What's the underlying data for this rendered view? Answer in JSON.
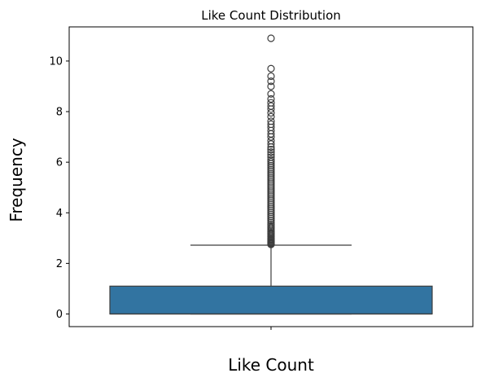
{
  "chart_data": {
    "type": "box",
    "title": "Like Count Distribution",
    "xlabel": "Like Count",
    "ylabel": "Frequency",
    "ylim": [
      -0.5,
      11.35
    ],
    "yticks": [
      0,
      2,
      4,
      6,
      8,
      10
    ],
    "grid": false,
    "legend": "none",
    "box_color": "#3274a1",
    "line_color": "#3d3d3d",
    "box": {
      "min": 0.0,
      "q1": 0.0,
      "median": 0.0,
      "q3": 1.1,
      "whisker_high": 2.72
    },
    "outliers": [
      2.75,
      2.78,
      2.8,
      2.83,
      2.86,
      2.9,
      2.93,
      2.96,
      3.0,
      3.05,
      3.1,
      3.15,
      3.2,
      3.25,
      3.3,
      3.36,
      3.42,
      3.48,
      3.55,
      3.62,
      3.7,
      3.78,
      3.86,
      3.94,
      4.02,
      4.1,
      4.18,
      4.26,
      4.34,
      4.42,
      4.5,
      4.58,
      4.66,
      4.74,
      4.82,
      4.9,
      4.98,
      5.06,
      5.14,
      5.22,
      5.3,
      5.38,
      5.46,
      5.54,
      5.62,
      5.7,
      5.78,
      5.86,
      5.94,
      6.02,
      6.1,
      6.2,
      6.3,
      6.4,
      6.5,
      6.6,
      6.72,
      6.85,
      7.0,
      7.12,
      7.25,
      7.38,
      7.5,
      7.62,
      7.8,
      7.95,
      8.1,
      8.22,
      8.35,
      8.5,
      8.7,
      9.0,
      9.2,
      9.4,
      9.7,
      10.9
    ]
  }
}
